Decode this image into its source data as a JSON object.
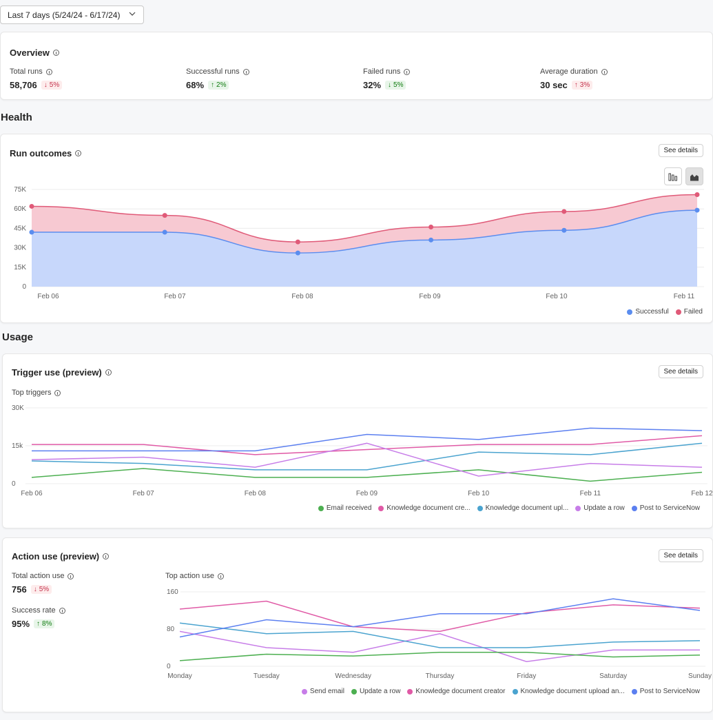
{
  "date_filter": {
    "label": "Last 7 days (5/24/24 - 6/17/24)"
  },
  "overview": {
    "title": "Overview",
    "metrics": [
      {
        "label": "Total runs",
        "value": "58,706",
        "delta": "5%",
        "direction": "down",
        "sentiment": "bad"
      },
      {
        "label": "Successful runs",
        "value": "68%",
        "delta": "2%",
        "direction": "up",
        "sentiment": "good"
      },
      {
        "label": "Failed runs",
        "value": "32%",
        "delta": "5%",
        "direction": "down",
        "sentiment": "good"
      },
      {
        "label": "Average duration",
        "value": "30 sec",
        "delta": "3%",
        "direction": "up",
        "sentiment": "bad"
      }
    ]
  },
  "health": {
    "section_title": "Health",
    "run_outcomes": {
      "title": "Run outcomes",
      "see_details": "See details"
    }
  },
  "usage": {
    "section_title": "Usage",
    "trigger_use": {
      "title": "Trigger use (preview)",
      "see_details": "See details",
      "subtitle": "Top triggers"
    },
    "action_use": {
      "title": "Action use (preview)",
      "see_details": "See details",
      "subtitle": "Top action use",
      "total_label": "Total action use",
      "total_value": "756",
      "total_delta": "5%",
      "success_label": "Success rate",
      "success_value": "95%",
      "success_delta": "8%"
    }
  },
  "colors": {
    "successful": "#5b8def",
    "failed": "#e05a78",
    "green": "#4caf50",
    "pink": "#e05aa6",
    "teal": "#4aa3cf",
    "purple": "#c77de8",
    "blue": "#5b7ff0"
  },
  "chart_data": [
    {
      "type": "area",
      "title": "Run outcomes",
      "categories": [
        "Feb 06",
        "Feb 07",
        "Feb 08",
        "Feb 09",
        "Feb 10",
        "Feb 11"
      ],
      "ylim": [
        0,
        75000
      ],
      "yticks": [
        "0",
        "15K",
        "30K",
        "45K",
        "60K",
        "75K"
      ],
      "series": [
        {
          "name": "Successful",
          "values": [
            42000,
            42000,
            26000,
            36000,
            43500,
            59000
          ]
        },
        {
          "name": "Failed",
          "values": [
            62000,
            55000,
            34500,
            46000,
            58000,
            71000
          ]
        }
      ],
      "legend": "bottom-right"
    },
    {
      "type": "line",
      "title": "Top triggers",
      "categories": [
        "Feb 06",
        "Feb 07",
        "Feb 08",
        "Feb 09",
        "Feb 10",
        "Feb 11",
        "Feb 12"
      ],
      "ylim": [
        0,
        30000
      ],
      "yticks": [
        "0",
        "15k",
        "30K"
      ],
      "series": [
        {
          "name": "Email received",
          "values": [
            2500,
            6000,
            2500,
            2500,
            5500,
            1000,
            4500
          ]
        },
        {
          "name": "Knowledge document cre...",
          "values": [
            15500,
            15500,
            11500,
            13500,
            15500,
            15500,
            19000
          ]
        },
        {
          "name": "Knowledge document upl...",
          "values": [
            9000,
            8000,
            5500,
            5500,
            12500,
            11500,
            16000
          ]
        },
        {
          "name": "Update a row",
          "values": [
            9500,
            10500,
            6500,
            16000,
            3000,
            8000,
            6500
          ]
        },
        {
          "name": "Post to ServiceNow",
          "values": [
            13000,
            13000,
            13000,
            19500,
            17500,
            22000,
            21000
          ]
        }
      ],
      "legend": "bottom-right"
    },
    {
      "type": "line",
      "title": "Top action use",
      "categories": [
        "Monday",
        "Tuesday",
        "Wednesday",
        "Thursday",
        "Friday",
        "Saturday",
        "Sunday"
      ],
      "ylim": [
        0,
        160
      ],
      "yticks": [
        "0",
        "80",
        "160"
      ],
      "series": [
        {
          "name": "Send email",
          "values": [
            75,
            40,
            30,
            70,
            10,
            35,
            35
          ]
        },
        {
          "name": "Update a row",
          "values": [
            12,
            26,
            22,
            30,
            30,
            20,
            24
          ]
        },
        {
          "name": "Knowledge document creator",
          "values": [
            123,
            140,
            85,
            75,
            115,
            132,
            125
          ]
        },
        {
          "name": "Knowledge document upload an...",
          "values": [
            93,
            70,
            75,
            40,
            40,
            52,
            55
          ]
        },
        {
          "name": "Post to ServiceNow",
          "values": [
            63,
            100,
            85,
            113,
            113,
            145,
            120
          ]
        }
      ],
      "legend": "bottom-right"
    }
  ]
}
